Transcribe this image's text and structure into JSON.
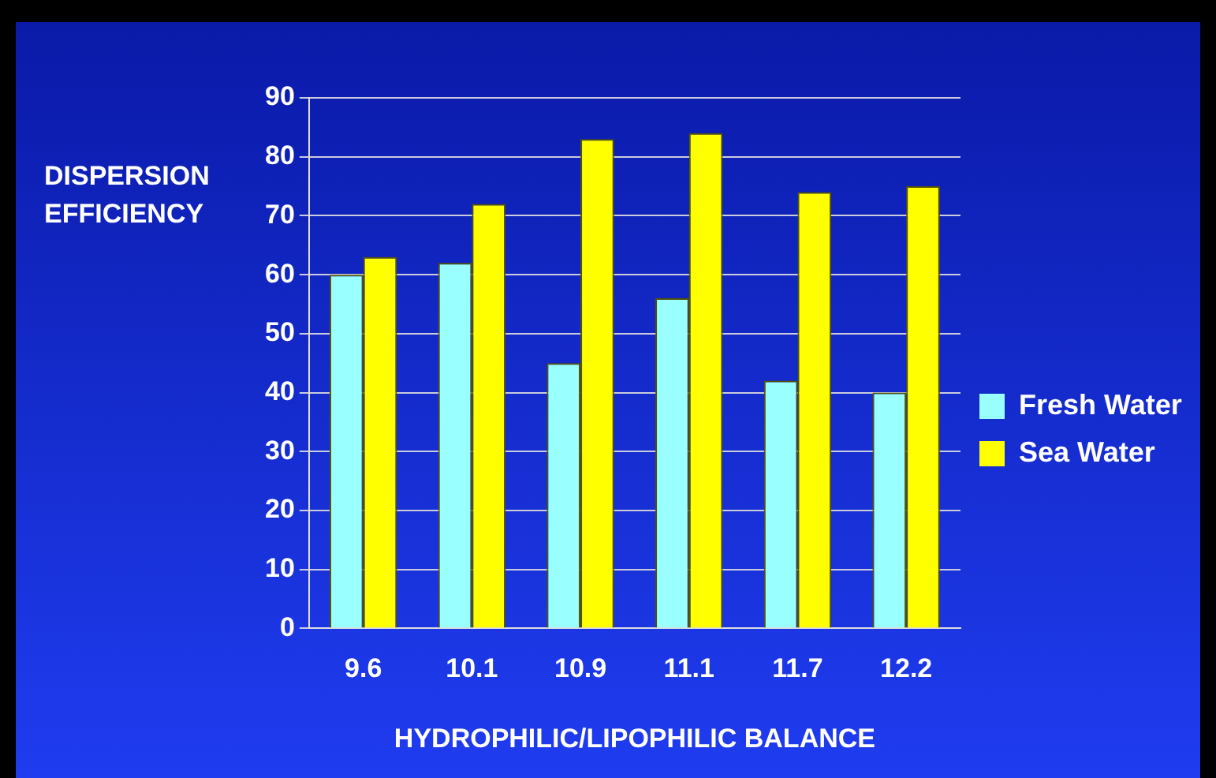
{
  "chart_data": {
    "type": "bar",
    "xlabel": "HYDROPHILIC/LIPOPHILIC BALANCE",
    "ylabel": "DISPERSION EFFICIENCY",
    "categories": [
      "9.6",
      "10.1",
      "10.9",
      "11.1",
      "11.7",
      "12.2"
    ],
    "series": [
      {
        "name": "Fresh Water",
        "color": "#99ffff",
        "values": [
          60,
          62,
          45,
          56,
          42,
          40
        ]
      },
      {
        "name": "Sea Water",
        "color": "#ffff00",
        "values": [
          63,
          72,
          83,
          84,
          74,
          75
        ]
      }
    ],
    "ylim": [
      0,
      90
    ],
    "yticks": [
      0,
      10,
      20,
      30,
      40,
      50,
      60,
      70,
      80,
      90
    ],
    "grid": "y",
    "legend": "right"
  }
}
